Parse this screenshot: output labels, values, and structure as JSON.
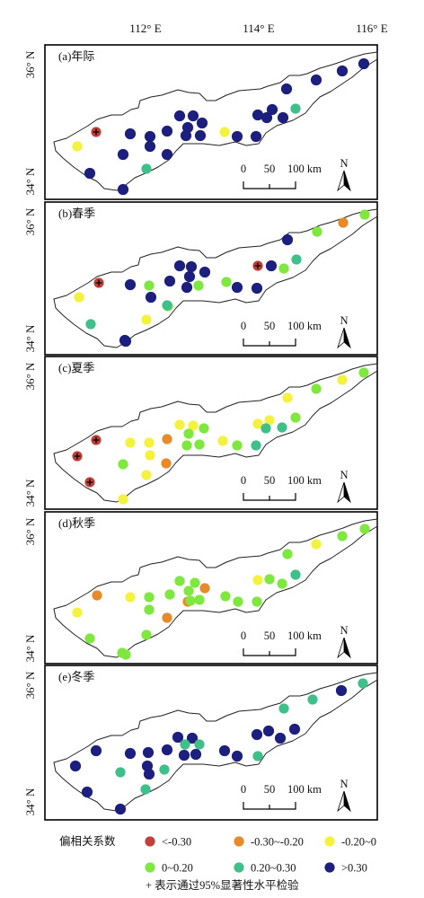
{
  "axes": {
    "lon_ticks": [
      "112° E",
      "114° E",
      "116° E"
    ],
    "lat_ticks": [
      "36° N",
      "34° N"
    ]
  },
  "scale_bar": {
    "labels": [
      "0",
      "50",
      "100 km"
    ]
  },
  "north_arrow": {
    "label": "N"
  },
  "legend": {
    "title": "偏相关系数",
    "categories": [
      {
        "label": "<-0.30",
        "color": "#c0403a"
      },
      {
        "label": "-0.30~-0.20",
        "color": "#e8892a"
      },
      {
        "label": "-0.20~0",
        "color": "#f4f23e"
      },
      {
        "label": "0~0.20",
        "color": "#7ee83e"
      },
      {
        "label": "0.20~0.30",
        "color": "#3fbf8a"
      },
      {
        "label": ">0.30",
        "color": "#1c1f7e"
      }
    ],
    "sig_note": "+ 表示通过95%显著性水平检验"
  },
  "panels": [
    {
      "label": "(a)年际",
      "points": [
        [
          0,
          0,
          1
        ],
        [
          3,
          0,
          0
        ],
        [
          1,
          0,
          0
        ],
        [
          2,
          0,
          0
        ],
        [
          4,
          0,
          0
        ],
        [
          5,
          0,
          0
        ],
        [
          6,
          0,
          0
        ],
        [
          7,
          0,
          0
        ],
        [
          8,
          0,
          0
        ],
        [
          9,
          0,
          0
        ],
        [
          10,
          0,
          0
        ],
        [
          11,
          0,
          0
        ],
        [
          12,
          0,
          0
        ],
        [
          13,
          0,
          0
        ],
        [
          14,
          0,
          0
        ],
        [
          15,
          0,
          0
        ],
        [
          16,
          0,
          0
        ],
        [
          17,
          0,
          0
        ],
        [
          18,
          0,
          0
        ],
        [
          19,
          0,
          0
        ],
        [
          20,
          0,
          1
        ],
        [
          21,
          0,
          0
        ],
        [
          22,
          0,
          0
        ],
        [
          23,
          0,
          0
        ],
        [
          24,
          0,
          0
        ],
        [
          25,
          0,
          0
        ],
        [
          26,
          0,
          0
        ],
        [
          27,
          0,
          0
        ],
        [
          28,
          0,
          0
        ]
      ],
      "cats": [
        0,
        2,
        5,
        5,
        5,
        5,
        5,
        4,
        5,
        5,
        5,
        5,
        5,
        5,
        5,
        5,
        5,
        2,
        5,
        5,
        5,
        5,
        5,
        4,
        5,
        5,
        5,
        5,
        5
      ]
    },
    {
      "label": "(b)春季",
      "points": [],
      "cats": [
        0,
        2,
        4,
        5,
        5,
        3,
        5,
        2,
        5,
        5,
        3,
        5,
        5,
        5,
        5,
        5,
        3,
        3,
        5,
        5,
        0,
        5,
        3,
        4,
        5,
        3,
        1,
        3,
        4
      ],
      "sig": [
        1,
        0,
        0,
        0,
        0,
        0,
        0,
        0,
        0,
        0,
        0,
        0,
        0,
        0,
        0,
        0,
        0,
        0,
        0,
        0,
        1,
        0,
        0,
        0,
        0,
        0,
        0,
        0,
        0
      ]
    },
    {
      "label": "(c)夏季",
      "points": [],
      "cats": [
        0,
        0,
        0,
        2,
        2,
        2,
        2,
        2,
        3,
        1,
        1,
        2,
        2,
        3,
        3,
        3,
        3,
        2,
        3,
        4,
        2,
        2,
        4,
        3,
        2,
        3,
        2,
        3,
        4
      ],
      "sig": [
        1,
        1,
        1,
        0,
        0,
        0,
        0,
        0,
        0,
        0,
        0,
        0,
        0,
        0,
        0,
        0,
        0,
        0,
        0,
        0,
        0,
        0,
        0,
        0,
        0,
        0,
        0,
        0,
        0
      ]
    },
    {
      "label": "(d)秋季",
      "points": [],
      "cats": [
        1,
        2,
        3,
        3,
        2,
        3,
        3,
        3,
        3,
        3,
        1,
        3,
        3,
        1,
        3,
        1,
        3,
        3,
        3,
        3,
        2,
        3,
        3,
        4,
        3,
        2,
        3,
        3,
        3
      ],
      "sig": [
        0,
        0,
        0,
        0,
        0,
        0,
        0,
        0,
        0,
        0,
        0,
        0,
        0,
        0,
        0,
        0,
        0,
        0,
        0,
        0,
        0,
        0,
        0,
        0,
        0,
        0,
        0,
        0,
        0
      ]
    },
    {
      "label": "(e)冬季",
      "points": [],
      "cats": [
        5,
        5,
        5,
        4,
        5,
        5,
        5,
        4,
        5,
        5,
        4,
        5,
        5,
        4,
        4,
        5,
        5,
        5,
        5,
        4,
        5,
        5,
        5,
        5,
        4,
        4,
        5,
        4,
        5
      ],
      "sig": [
        0,
        0,
        0,
        0,
        0,
        0,
        0,
        0,
        0,
        0,
        0,
        0,
        0,
        0,
        0,
        0,
        0,
        0,
        0,
        0,
        0,
        0,
        0,
        0,
        0,
        0,
        0,
        0,
        0
      ]
    }
  ]
}
